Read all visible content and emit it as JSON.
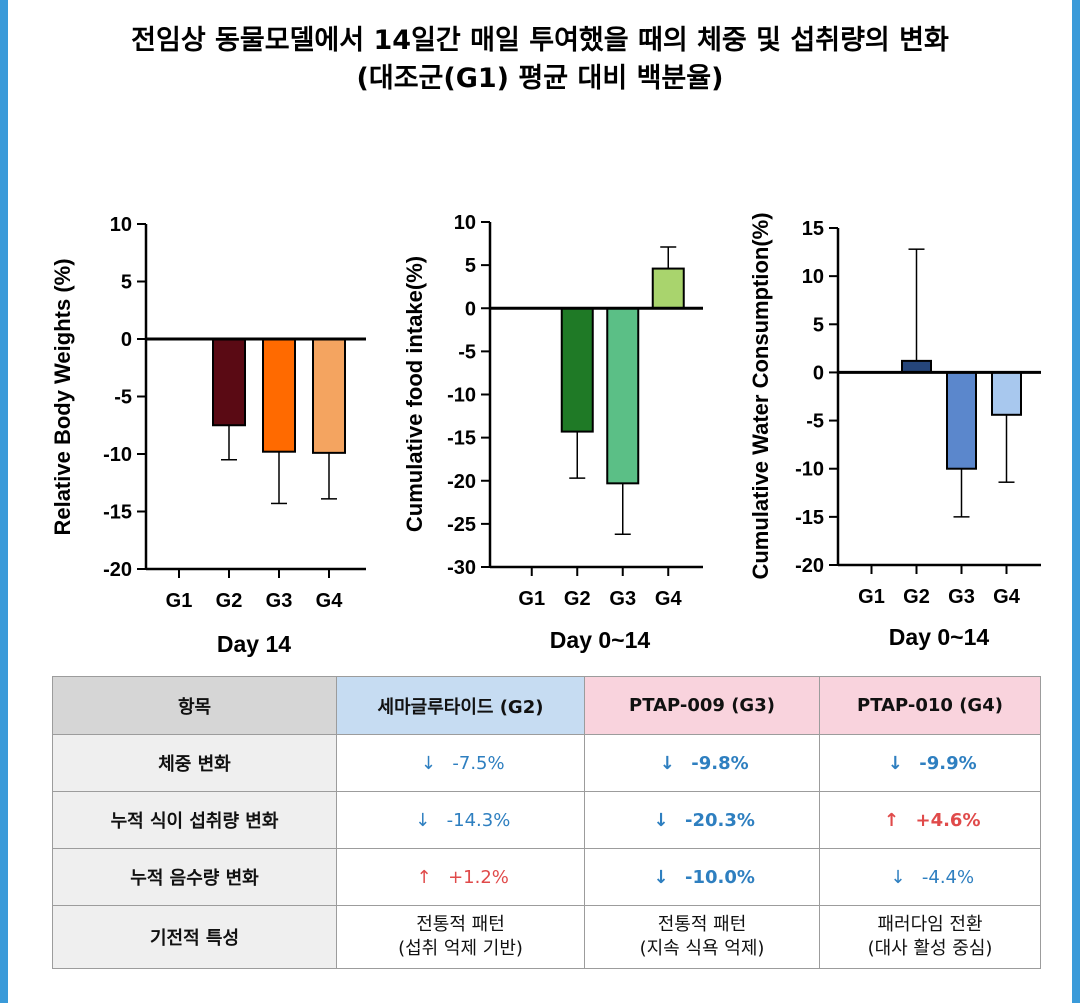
{
  "title_line1": "전임상 동물모델에서 14일간 매일 투여했을 때의 체중 및 섭취량의 변화",
  "title_line2": "(대조군(G1) 평균 대비 백분율)",
  "chart_data": [
    {
      "type": "bar",
      "categories": [
        "G1",
        "G2",
        "G3",
        "G4"
      ],
      "values": [
        0,
        -7.5,
        -9.8,
        -9.9
      ],
      "errors": [
        0,
        3.0,
        4.5,
        4.0
      ],
      "colors": [
        "#5a0a14",
        "#5a0a14",
        "#ff6a00",
        "#f4a460"
      ],
      "ylim": [
        -20,
        10
      ],
      "yticks": [
        "10",
        "5",
        "0",
        "-5",
        "-10",
        "-15",
        "-20"
      ],
      "ylabel": "Relative Body Weights (%)",
      "xlabel": "Day 14"
    },
    {
      "type": "bar",
      "categories": [
        "G1",
        "G2",
        "G3",
        "G4"
      ],
      "values": [
        0,
        -14.3,
        -20.3,
        4.6
      ],
      "errors": [
        0,
        5.4,
        5.9,
        2.5
      ],
      "colors": [
        "#1f7a26",
        "#1f7a26",
        "#5bbf86",
        "#a9d46d"
      ],
      "ylim": [
        -30,
        10
      ],
      "yticks": [
        "10",
        "5",
        "0",
        "-5",
        "-10",
        "-15",
        "-20",
        "-25",
        "-30"
      ],
      "ylabel": "Cumulative food intake(%)",
      "xlabel": "Day 0~14"
    },
    {
      "type": "bar",
      "categories": [
        "G1",
        "G2",
        "G3",
        "G4"
      ],
      "values": [
        0,
        1.2,
        -10.0,
        -4.4
      ],
      "errors": [
        0,
        11.6,
        5.0,
        7.0
      ],
      "colors": [
        "#25457a",
        "#25457a",
        "#5b87cc",
        "#a8c8ee"
      ],
      "ylim": [
        -20,
        15
      ],
      "yticks": [
        "15",
        "10",
        "5",
        "0",
        "-5",
        "-10",
        "-15",
        "-20"
      ],
      "ylabel": "Cumulative Water Consumption(%)",
      "xlabel": "Day 0~14"
    }
  ],
  "table": {
    "headers": [
      "항목",
      "세마글루타이드 (G2)",
      "PTAP-009 (G3)",
      "PTAP-010 (G4)"
    ],
    "rows": [
      {
        "label": "체중 변화",
        "cells": [
          {
            "arrow": "↓",
            "dir": "down",
            "value": "-7.5%",
            "bold": false
          },
          {
            "arrow": "↓",
            "dir": "down",
            "value": "-9.8%",
            "bold": true
          },
          {
            "arrow": "↓",
            "dir": "down",
            "value": "-9.9%",
            "bold": true
          }
        ]
      },
      {
        "label": "누적 식이 섭취량 변화",
        "cells": [
          {
            "arrow": "↓",
            "dir": "down",
            "value": "-14.3%",
            "bold": false
          },
          {
            "arrow": "↓",
            "dir": "down",
            "value": "-20.3%",
            "bold": true
          },
          {
            "arrow": "↑",
            "dir": "up",
            "value": "+4.6%",
            "bold": true
          }
        ]
      },
      {
        "label": "누적 음수량 변화",
        "cells": [
          {
            "arrow": "↑",
            "dir": "up",
            "value": "+1.2%",
            "bold": false
          },
          {
            "arrow": "↓",
            "dir": "down",
            "value": "-10.0%",
            "bold": true
          },
          {
            "arrow": "↓",
            "dir": "down",
            "value": "-4.4%",
            "bold": false
          }
        ]
      }
    ],
    "mechanism": {
      "label": "기전적 특성",
      "cells": [
        {
          "line1": "전통적 패턴",
          "line2": "(섭취 억제 기반)"
        },
        {
          "line1": "전통적 패턴",
          "line2": "(지속 식욕 억제)"
        },
        {
          "line1": "패러다임 전환",
          "line2": "(대사 활성 중심)"
        }
      ]
    },
    "colors": {
      "down": "#2e7fc0",
      "up": "#e04a4a"
    }
  }
}
